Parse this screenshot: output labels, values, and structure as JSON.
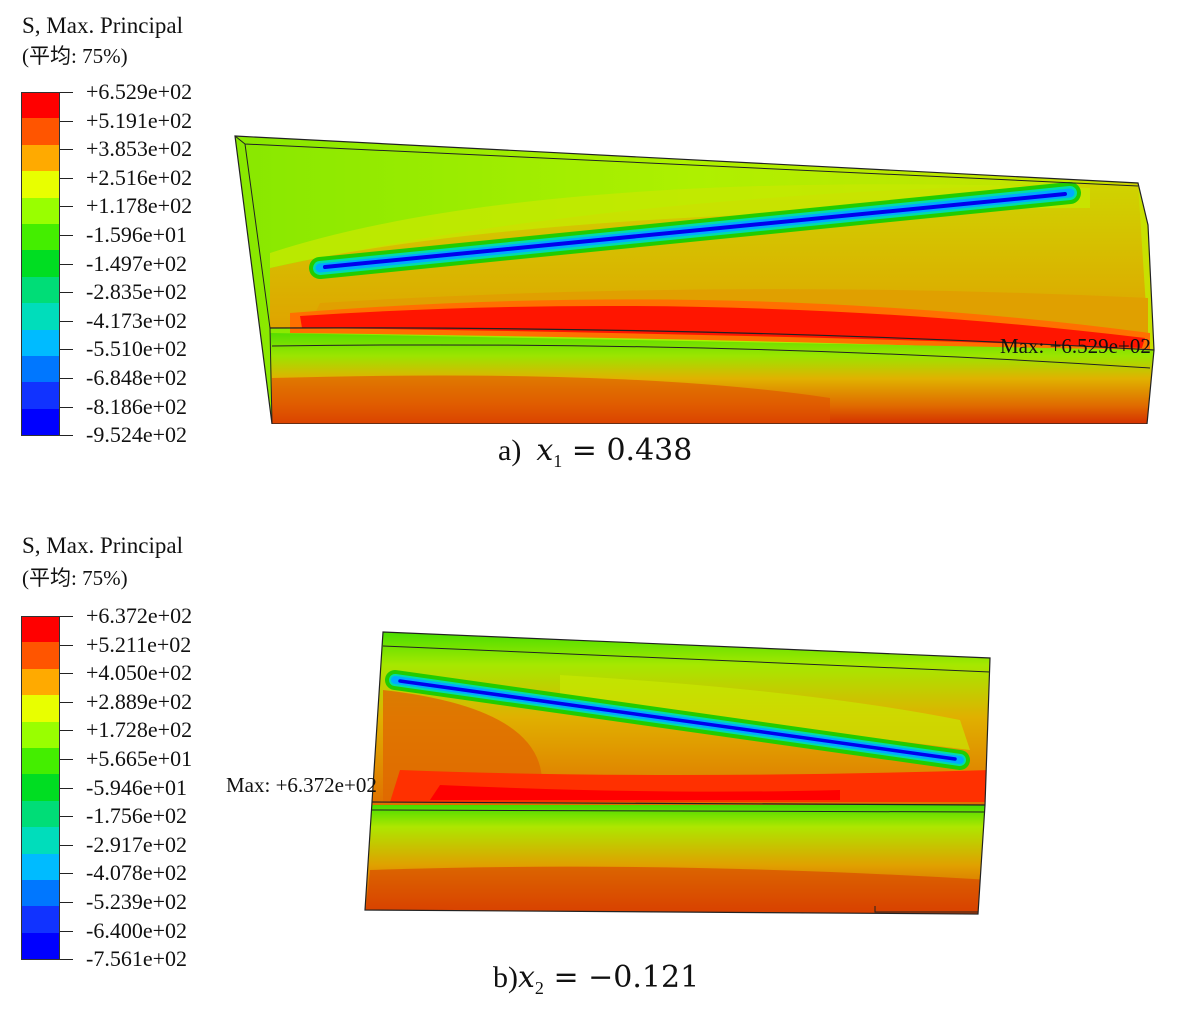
{
  "panels": [
    {
      "legend": {
        "title": "S, Max. Principal",
        "subtitle": "(平均: 75%)",
        "colors": [
          "#ff0000",
          "#ff5500",
          "#ffaa00",
          "#e8ff00",
          "#99ff00",
          "#44ee00",
          "#00dd22",
          "#00dd77",
          "#00ddbb",
          "#00bbff",
          "#0077ff",
          "#1133ff",
          "#0000ff"
        ],
        "labels": [
          "+6.529e+02",
          "+5.191e+02",
          "+3.853e+02",
          "+2.516e+02",
          "+1.178e+02",
          "-1.596e+01",
          "-1.497e+02",
          "-2.835e+02",
          "-4.173e+02",
          "-5.510e+02",
          "-6.848e+02",
          "-8.186e+02",
          "-9.524e+02"
        ]
      },
      "max_label": "Max: +6.529e+02",
      "caption": {
        "prefix": "a)",
        "var": "x",
        "sub": "1",
        "eq": " = 0.438"
      }
    },
    {
      "legend": {
        "title": "S, Max. Principal",
        "subtitle": "(平均: 75%)",
        "colors": [
          "#ff0000",
          "#ff5500",
          "#ffaa00",
          "#e8ff00",
          "#99ff00",
          "#44ee00",
          "#00dd22",
          "#00dd77",
          "#00ddbb",
          "#00bbff",
          "#0077ff",
          "#1133ff",
          "#0000ff"
        ],
        "labels": [
          "+6.372e+02",
          "+5.211e+02",
          "+4.050e+02",
          "+2.889e+02",
          "+1.728e+02",
          "+5.665e+01",
          "-5.946e+01",
          "-1.756e+02",
          "-2.917e+02",
          "-4.078e+02",
          "-5.239e+02",
          "-6.400e+02",
          "-7.561e+02"
        ]
      },
      "max_label": "Max: +6.372e+02",
      "caption": {
        "prefix": "b)",
        "var": "x",
        "sub": "2",
        "eq": " = −0.121"
      }
    }
  ]
}
